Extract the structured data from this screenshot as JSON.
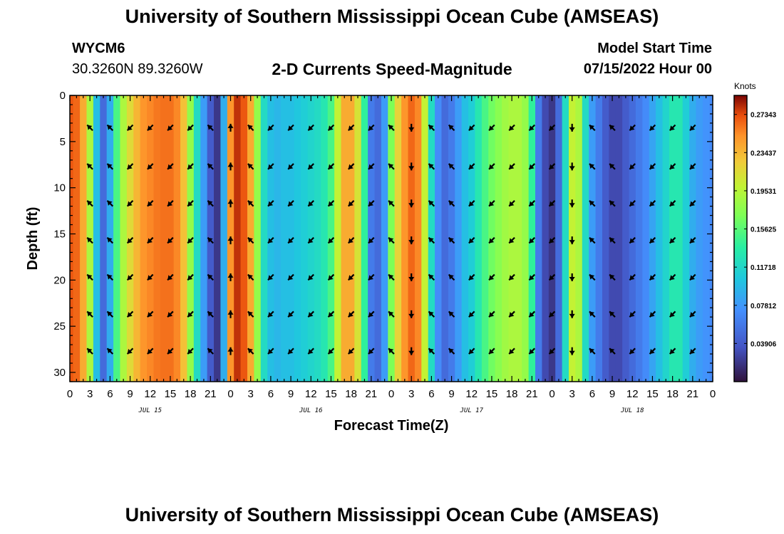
{
  "header": {
    "title": "University of Southern Mississippi Ocean Cube (AMSEAS)",
    "station_id": "WYCM6",
    "station_coords": "30.3260N  89.3260W",
    "subtitle": "2-D Currents Speed-Magnitude",
    "model_start_label": "Model Start Time",
    "model_start_value": "07/15/2022 Hour 00"
  },
  "footer": {
    "title": "University of Southern Mississippi Ocean Cube (AMSEAS)"
  },
  "chart_data": {
    "type": "heatmap",
    "title": "2-D Currents Speed-Magnitude",
    "xlabel": "Forecast Time(Z)",
    "ylabel": "Depth (ft)",
    "xlim": [
      0,
      96
    ],
    "ylim": [
      0,
      31
    ],
    "x_ticks": [
      0,
      3,
      6,
      9,
      12,
      15,
      18,
      21,
      24,
      27,
      30,
      33,
      36,
      39,
      42,
      45,
      48,
      51,
      54,
      57,
      60,
      63,
      66,
      69,
      72,
      75,
      78,
      81,
      84,
      87,
      90,
      93,
      96
    ],
    "x_tick_labels": [
      "0",
      "3",
      "6",
      "9",
      "12",
      "15",
      "18",
      "21",
      "0",
      "3",
      "6",
      "9",
      "12",
      "15",
      "18",
      "21",
      "0",
      "3",
      "6",
      "9",
      "12",
      "15",
      "18",
      "21",
      "0",
      "3",
      "6",
      "9",
      "12",
      "15",
      "18",
      "21",
      "0"
    ],
    "y_ticks": [
      0,
      5,
      10,
      15,
      20,
      25,
      30
    ],
    "y_tick_labels": [
      "0",
      "5",
      "10",
      "15",
      "20",
      "25",
      "30"
    ],
    "day_labels": [
      {
        "hour": 12,
        "label": "JUL 15"
      },
      {
        "hour": 36,
        "label": "JUL 16"
      },
      {
        "hour": 60,
        "label": "JUL 17"
      },
      {
        "hour": 84,
        "label": "JUL 18"
      }
    ],
    "colorbar": {
      "unit": "Knots",
      "range": [
        0,
        0.2929
      ],
      "tick_values": [
        0.27343,
        0.23437,
        0.19531,
        0.15625,
        0.11718,
        0.07812,
        0.03906
      ],
      "tick_labels": [
        "0.27343",
        "0.23437",
        "0.19531",
        "0.15625",
        "0.11718",
        "0.07812",
        "0.03906"
      ]
    },
    "speed_profile": {
      "hours": [
        0,
        1,
        2,
        3,
        4,
        5,
        6,
        7,
        8,
        9,
        10,
        11,
        12,
        13,
        14,
        15,
        16,
        17,
        18,
        19,
        20,
        21,
        22,
        23,
        24,
        25,
        26,
        27,
        28,
        29,
        30,
        31,
        32,
        33,
        34,
        35,
        36,
        37,
        38,
        39,
        40,
        41,
        42,
        43,
        44,
        45,
        46,
        47,
        48,
        49,
        50,
        51,
        52,
        53,
        54,
        55,
        56,
        57,
        58,
        59,
        60,
        61,
        62,
        63,
        64,
        65,
        66,
        67,
        68,
        69,
        70,
        71,
        72,
        73,
        74,
        75,
        76,
        77,
        78,
        79,
        80,
        81,
        82,
        83,
        84,
        85,
        86,
        87,
        88,
        89,
        90,
        91,
        92,
        93,
        94,
        95,
        96
      ],
      "knots": [
        0.27,
        0.265,
        0.24,
        0.19,
        0.1,
        0.05,
        0.09,
        0.15,
        0.19,
        0.215,
        0.235,
        0.25,
        0.255,
        0.26,
        0.262,
        0.262,
        0.255,
        0.23,
        0.18,
        0.12,
        0.08,
        0.04,
        0.02,
        0.09,
        0.25,
        0.28,
        0.27,
        0.24,
        0.18,
        0.12,
        0.1,
        0.095,
        0.1,
        0.1,
        0.105,
        0.11,
        0.115,
        0.12,
        0.13,
        0.15,
        0.2,
        0.24,
        0.24,
        0.21,
        0.14,
        0.06,
        0.05,
        0.08,
        0.17,
        0.22,
        0.25,
        0.265,
        0.255,
        0.2,
        0.12,
        0.07,
        0.05,
        0.06,
        0.08,
        0.1,
        0.11,
        0.13,
        0.15,
        0.165,
        0.175,
        0.185,
        0.19,
        0.19,
        0.18,
        0.14,
        0.06,
        0.03,
        0.02,
        0.05,
        0.12,
        0.2,
        0.19,
        0.12,
        0.08,
        0.06,
        0.04,
        0.03,
        0.03,
        0.04,
        0.05,
        0.06,
        0.07,
        0.085,
        0.1,
        0.115,
        0.13,
        0.13,
        0.11,
        0.09,
        0.08,
        0.075,
        0.07
      ]
    },
    "vectors": {
      "note": "current direction arrows (angle in degrees, screen convention: 0 = east, 90 = south)",
      "hours": [
        3,
        6,
        9,
        12,
        15,
        18,
        21,
        24,
        27,
        30,
        33,
        36,
        39,
        42,
        45,
        48,
        51,
        54,
        57,
        60,
        63,
        66,
        69,
        72,
        75,
        78,
        81,
        84,
        87,
        90,
        93
      ],
      "angles_deg": [
        -135,
        -135,
        135,
        135,
        135,
        135,
        -135,
        -90,
        -135,
        135,
        135,
        135,
        135,
        135,
        135,
        -135,
        90,
        -135,
        -135,
        135,
        135,
        135,
        135,
        135,
        90,
        -135,
        -135,
        135,
        135,
        135,
        135
      ]
    }
  }
}
